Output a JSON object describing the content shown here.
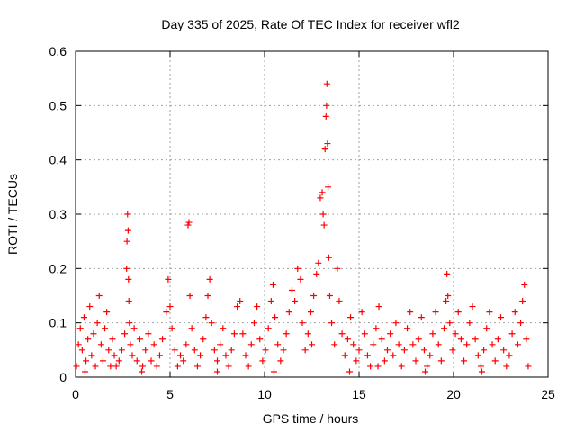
{
  "chart_data": {
    "type": "scatter",
    "title": "Day 335 of 2025, Rate Of TEC Index for receiver wfl2",
    "xlabel": "GPS time / hours",
    "ylabel": "ROTI / TECUs",
    "xlim": [
      0,
      25
    ],
    "ylim": [
      0,
      0.6
    ],
    "x_ticks": [
      0,
      5,
      10,
      15,
      20,
      25
    ],
    "y_ticks": [
      0,
      0.1,
      0.2,
      0.3,
      0.4,
      0.5,
      0.6
    ],
    "x_tick_labels": [
      "0",
      "5",
      "10",
      "15",
      "20",
      "25"
    ],
    "y_tick_labels": [
      "0",
      "0.1",
      "0.2",
      "0.3",
      "0.4",
      "0.5",
      "0.6"
    ],
    "grid": true,
    "marker": "+",
    "series": [
      {
        "name": "ROTI",
        "color": "#ff0000",
        "points": [
          [
            0.05,
            0.02
          ],
          [
            0.15,
            0.06
          ],
          [
            0.25,
            0.09
          ],
          [
            0.35,
            0.05
          ],
          [
            0.45,
            0.11
          ],
          [
            0.55,
            0.03
          ],
          [
            0.65,
            0.07
          ],
          [
            0.75,
            0.13
          ],
          [
            0.85,
            0.04
          ],
          [
            0.95,
            0.08
          ],
          [
            1.05,
            0.02
          ],
          [
            1.15,
            0.1
          ],
          [
            1.25,
            0.15
          ],
          [
            1.35,
            0.06
          ],
          [
            1.45,
            0.03
          ],
          [
            1.55,
            0.09
          ],
          [
            1.65,
            0.12
          ],
          [
            1.75,
            0.05
          ],
          [
            1.85,
            0.02
          ],
          [
            1.95,
            0.07
          ],
          [
            2.05,
            0.04
          ],
          [
            2.15,
            0.02
          ],
          [
            2.3,
            0.03
          ],
          [
            2.45,
            0.05
          ],
          [
            2.6,
            0.08
          ],
          [
            2.7,
            0.2
          ],
          [
            2.72,
            0.25
          ],
          [
            2.75,
            0.3
          ],
          [
            2.78,
            0.27
          ],
          [
            2.8,
            0.18
          ],
          [
            2.82,
            0.14
          ],
          [
            2.85,
            0.1
          ],
          [
            2.9,
            0.06
          ],
          [
            3.0,
            0.04
          ],
          [
            3.1,
            0.09
          ],
          [
            3.25,
            0.03
          ],
          [
            3.4,
            0.07
          ],
          [
            3.55,
            0.02
          ],
          [
            3.7,
            0.05
          ],
          [
            3.85,
            0.08
          ],
          [
            4.0,
            0.03
          ],
          [
            4.15,
            0.06
          ],
          [
            4.3,
            0.02
          ],
          [
            4.45,
            0.04
          ],
          [
            4.6,
            0.07
          ],
          [
            4.8,
            0.12
          ],
          [
            4.9,
            0.18
          ],
          [
            5.0,
            0.13
          ],
          [
            5.1,
            0.09
          ],
          [
            5.25,
            0.05
          ],
          [
            5.4,
            0.02
          ],
          [
            5.55,
            0.04
          ],
          [
            5.7,
            0.03
          ],
          [
            5.85,
            0.06
          ],
          [
            5.95,
            0.28
          ],
          [
            6.0,
            0.285
          ],
          [
            6.05,
            0.15
          ],
          [
            6.15,
            0.09
          ],
          [
            6.3,
            0.05
          ],
          [
            6.45,
            0.02
          ],
          [
            6.6,
            0.04
          ],
          [
            6.75,
            0.07
          ],
          [
            6.9,
            0.11
          ],
          [
            7.0,
            0.15
          ],
          [
            7.1,
            0.18
          ],
          [
            7.2,
            0.1
          ],
          [
            7.35,
            0.05
          ],
          [
            7.5,
            0.03
          ],
          [
            7.65,
            0.06
          ],
          [
            7.8,
            0.09
          ],
          [
            7.95,
            0.04
          ],
          [
            8.1,
            0.02
          ],
          [
            8.25,
            0.05
          ],
          [
            8.4,
            0.08
          ],
          [
            8.55,
            0.13
          ],
          [
            8.7,
            0.14
          ],
          [
            8.85,
            0.08
          ],
          [
            9.0,
            0.04
          ],
          [
            9.15,
            0.02
          ],
          [
            9.3,
            0.06
          ],
          [
            9.45,
            0.1
          ],
          [
            9.6,
            0.13
          ],
          [
            9.75,
            0.07
          ],
          [
            9.9,
            0.03
          ],
          [
            10.05,
            0.05
          ],
          [
            10.2,
            0.09
          ],
          [
            10.35,
            0.14
          ],
          [
            10.45,
            0.17
          ],
          [
            10.55,
            0.11
          ],
          [
            10.7,
            0.06
          ],
          [
            10.85,
            0.03
          ],
          [
            11.0,
            0.05
          ],
          [
            11.15,
            0.08
          ],
          [
            11.3,
            0.12
          ],
          [
            11.45,
            0.16
          ],
          [
            11.6,
            0.14
          ],
          [
            11.75,
            0.2
          ],
          [
            11.9,
            0.18
          ],
          [
            12.0,
            0.1
          ],
          [
            12.15,
            0.05
          ],
          [
            12.3,
            0.08
          ],
          [
            12.45,
            0.12
          ],
          [
            12.6,
            0.15
          ],
          [
            12.75,
            0.19
          ],
          [
            12.85,
            0.21
          ],
          [
            12.95,
            0.33
          ],
          [
            13.05,
            0.34
          ],
          [
            13.1,
            0.3
          ],
          [
            13.15,
            0.28
          ],
          [
            13.2,
            0.42
          ],
          [
            13.25,
            0.48
          ],
          [
            13.28,
            0.5
          ],
          [
            13.3,
            0.54
          ],
          [
            13.33,
            0.43
          ],
          [
            13.36,
            0.35
          ],
          [
            13.4,
            0.22
          ],
          [
            13.45,
            0.15
          ],
          [
            13.55,
            0.1
          ],
          [
            13.7,
            0.06
          ],
          [
            13.85,
            0.2
          ],
          [
            13.95,
            0.14
          ],
          [
            14.1,
            0.08
          ],
          [
            14.25,
            0.04
          ],
          [
            14.4,
            0.07
          ],
          [
            14.55,
            0.11
          ],
          [
            14.7,
            0.06
          ],
          [
            14.85,
            0.03
          ],
          [
            15.0,
            0.05
          ],
          [
            15.15,
            0.12
          ],
          [
            15.3,
            0.08
          ],
          [
            15.45,
            0.04
          ],
          [
            15.6,
            0.02
          ],
          [
            15.75,
            0.06
          ],
          [
            15.9,
            0.09
          ],
          [
            16.05,
            0.13
          ],
          [
            16.2,
            0.07
          ],
          [
            16.35,
            0.03
          ],
          [
            16.5,
            0.05
          ],
          [
            16.65,
            0.08
          ],
          [
            16.8,
            0.04
          ],
          [
            16.95,
            0.1
          ],
          [
            17.1,
            0.06
          ],
          [
            17.25,
            0.02
          ],
          [
            17.4,
            0.05
          ],
          [
            17.55,
            0.09
          ],
          [
            17.7,
            0.12
          ],
          [
            17.85,
            0.06
          ],
          [
            18.0,
            0.03
          ],
          [
            18.15,
            0.07
          ],
          [
            18.3,
            0.11
          ],
          [
            18.45,
            0.05
          ],
          [
            18.6,
            0.02
          ],
          [
            18.75,
            0.04
          ],
          [
            18.9,
            0.08
          ],
          [
            19.05,
            0.12
          ],
          [
            19.2,
            0.06
          ],
          [
            19.35,
            0.03
          ],
          [
            19.5,
            0.09
          ],
          [
            19.6,
            0.14
          ],
          [
            19.65,
            0.19
          ],
          [
            19.7,
            0.15
          ],
          [
            19.8,
            0.1
          ],
          [
            19.95,
            0.05
          ],
          [
            20.1,
            0.08
          ],
          [
            20.25,
            0.12
          ],
          [
            20.4,
            0.07
          ],
          [
            20.55,
            0.03
          ],
          [
            20.7,
            0.06
          ],
          [
            20.85,
            0.1
          ],
          [
            21.0,
            0.13
          ],
          [
            21.15,
            0.07
          ],
          [
            21.3,
            0.04
          ],
          [
            21.45,
            0.02
          ],
          [
            21.6,
            0.05
          ],
          [
            21.75,
            0.09
          ],
          [
            21.9,
            0.12
          ],
          [
            22.05,
            0.06
          ],
          [
            22.2,
            0.03
          ],
          [
            22.35,
            0.07
          ],
          [
            22.5,
            0.11
          ],
          [
            22.65,
            0.05
          ],
          [
            22.8,
            0.02
          ],
          [
            22.95,
            0.04
          ],
          [
            23.1,
            0.08
          ],
          [
            23.25,
            0.12
          ],
          [
            23.4,
            0.06
          ],
          [
            23.55,
            0.1
          ],
          [
            23.65,
            0.14
          ],
          [
            23.75,
            0.17
          ],
          [
            23.85,
            0.07
          ],
          [
            23.95,
            0.02
          ],
          [
            0.5,
            0.01
          ],
          [
            3.5,
            0.01
          ],
          [
            7.5,
            0.01
          ],
          [
            10.5,
            0.01
          ],
          [
            14.5,
            0.01
          ],
          [
            18.5,
            0.01
          ],
          [
            21.5,
            0.01
          ],
          [
            12.5,
            0.06
          ],
          [
            16.0,
            0.02
          ]
        ]
      }
    ]
  }
}
